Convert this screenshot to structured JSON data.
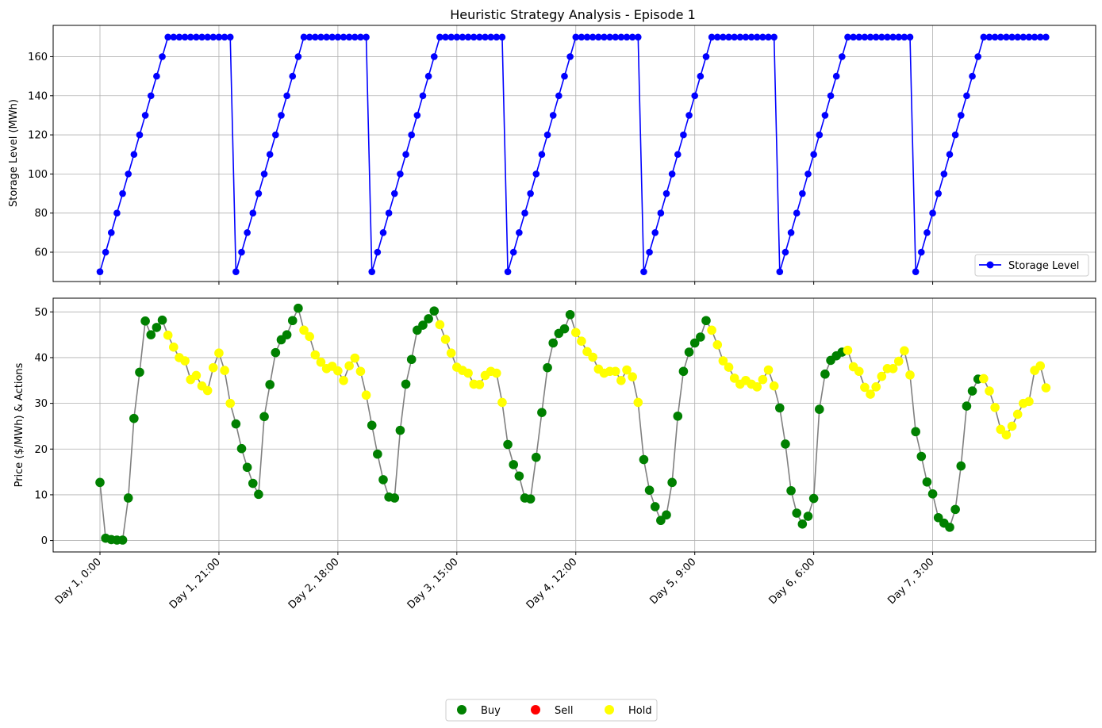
{
  "chart_data": [
    {
      "type": "line",
      "title": "Heuristic Strategy Analysis - Episode 1",
      "xlabel": "",
      "ylabel": "Storage Level (MWh)",
      "ylim": [
        45,
        176
      ],
      "y_ticks": [
        60,
        80,
        100,
        120,
        140,
        160
      ],
      "grid": true,
      "legend_position": "bottom-right",
      "series": [
        {
          "name": "Storage Level",
          "color": "#0000ff",
          "marker": "circle",
          "values": [
            50,
            60,
            70,
            80,
            90,
            100,
            110,
            120,
            130,
            140,
            150,
            160,
            170,
            170,
            170,
            170,
            170,
            170,
            170,
            170,
            170,
            170,
            170,
            170,
            50,
            60,
            70,
            80,
            90,
            100,
            110,
            120,
            130,
            140,
            150,
            160,
            170,
            170,
            170,
            170,
            170,
            170,
            170,
            170,
            170,
            170,
            170,
            170,
            50,
            60,
            70,
            80,
            90,
            100,
            110,
            120,
            130,
            140,
            150,
            160,
            170,
            170,
            170,
            170,
            170,
            170,
            170,
            170,
            170,
            170,
            170,
            170,
            50,
            60,
            70,
            80,
            90,
            100,
            110,
            120,
            130,
            140,
            150,
            160,
            170,
            170,
            170,
            170,
            170,
            170,
            170,
            170,
            170,
            170,
            170,
            170,
            50,
            60,
            70,
            80,
            90,
            100,
            110,
            120,
            130,
            140,
            150,
            160,
            170,
            170,
            170,
            170,
            170,
            170,
            170,
            170,
            170,
            170,
            170,
            170,
            50,
            60,
            70,
            80,
            90,
            100,
            110,
            120,
            130,
            140,
            150,
            160,
            170,
            170,
            170,
            170,
            170,
            170,
            170,
            170,
            170,
            170,
            170,
            170,
            50,
            60,
            70,
            80,
            90,
            100,
            110,
            120,
            130,
            140,
            150,
            160,
            170,
            170,
            170,
            170,
            170,
            170,
            170,
            170,
            170,
            170,
            170,
            170
          ]
        }
      ]
    },
    {
      "type": "scatter",
      "xlabel": "",
      "ylabel": "Price ($/MWh) & Actions",
      "ylim": [
        -2.5,
        53
      ],
      "y_ticks": [
        0,
        10,
        20,
        30,
        40,
        50
      ],
      "grid": true,
      "line_color": "#808080",
      "x_tick_labels": [
        "Day 1, 0:00",
        "Day 1, 21:00",
        "Day 2, 18:00",
        "Day 3, 15:00",
        "Day 4, 12:00",
        "Day 5, 9:00",
        "Day 6, 6:00",
        "Day 7, 3:00"
      ],
      "x_tick_indices": [
        0,
        21,
        42,
        63,
        84,
        105,
        126,
        147
      ],
      "legend_position": "bottom-center",
      "legend": [
        {
          "label": "Buy",
          "color": "#008000"
        },
        {
          "label": "Sell",
          "color": "#ff0000"
        },
        {
          "label": "Hold",
          "color": "#ffff00"
        }
      ],
      "prices": [
        12.7,
        0.5,
        0.2,
        0.1,
        0.1,
        9.3,
        26.7,
        36.8,
        48.0,
        45.0,
        46.6,
        48.2,
        44.9,
        42.3,
        40.0,
        39.3,
        35.2,
        36.1,
        33.8,
        32.8,
        37.8,
        41.0,
        37.2,
        30.0,
        25.5,
        20.1,
        16.0,
        12.5,
        10.1,
        27.1,
        34.1,
        41.1,
        43.9,
        45.0,
        48.1,
        50.8,
        46.0,
        44.6,
        40.6,
        39.0,
        37.6,
        38.1,
        37.1,
        35.0,
        38.2,
        39.9,
        37.0,
        31.8,
        25.2,
        18.9,
        13.3,
        9.5,
        9.3,
        24.1,
        34.2,
        39.6,
        46.0,
        47.1,
        48.5,
        50.2,
        47.2,
        44.0,
        41.0,
        37.9,
        37.2,
        36.6,
        34.2,
        34.1,
        36.1,
        37.0,
        36.6,
        30.2,
        21.0,
        16.6,
        14.1,
        9.3,
        9.1,
        18.2,
        28.0,
        37.8,
        43.2,
        45.3,
        46.3,
        49.4,
        45.5,
        43.6,
        41.3,
        40.1,
        37.5,
        36.6,
        37.0,
        37.0,
        35.0,
        37.3,
        35.8,
        30.2,
        17.7,
        11.0,
        7.4,
        4.4,
        5.6,
        12.7,
        27.2,
        37.0,
        41.2,
        43.2,
        44.5,
        48.1,
        46.0,
        42.8,
        39.3,
        37.9,
        35.5,
        34.2,
        35.0,
        34.2,
        33.6,
        35.2,
        37.3,
        33.8,
        29.0,
        21.1,
        10.9,
        6.0,
        3.6,
        5.3,
        9.2,
        28.7,
        36.4,
        39.4,
        40.4,
        41.2,
        41.6,
        38.0,
        37.0,
        33.5,
        32.0,
        33.6,
        35.9,
        37.6,
        37.6,
        39.2,
        41.5,
        36.2,
        23.8,
        18.4,
        12.8,
        10.2,
        5.0,
        3.8,
        2.9,
        6.8,
        16.3,
        29.4,
        32.7,
        35.3,
        35.4,
        32.7,
        29.1,
        24.3,
        23.1,
        25.0,
        27.6,
        30.0,
        30.4,
        37.2,
        38.2,
        33.4
      ],
      "actions": [
        "Buy",
        "Buy",
        "Buy",
        "Buy",
        "Buy",
        "Buy",
        "Buy",
        "Buy",
        "Buy",
        "Buy",
        "Buy",
        "Buy",
        "Hold",
        "Hold",
        "Hold",
        "Hold",
        "Hold",
        "Hold",
        "Hold",
        "Hold",
        "Hold",
        "Hold",
        "Hold",
        "Hold",
        "Buy",
        "Buy",
        "Buy",
        "Buy",
        "Buy",
        "Buy",
        "Buy",
        "Buy",
        "Buy",
        "Buy",
        "Buy",
        "Buy",
        "Hold",
        "Hold",
        "Hold",
        "Hold",
        "Hold",
        "Hold",
        "Hold",
        "Hold",
        "Hold",
        "Hold",
        "Hold",
        "Hold",
        "Buy",
        "Buy",
        "Buy",
        "Buy",
        "Buy",
        "Buy",
        "Buy",
        "Buy",
        "Buy",
        "Buy",
        "Buy",
        "Buy",
        "Hold",
        "Hold",
        "Hold",
        "Hold",
        "Hold",
        "Hold",
        "Hold",
        "Hold",
        "Hold",
        "Hold",
        "Hold",
        "Hold",
        "Buy",
        "Buy",
        "Buy",
        "Buy",
        "Buy",
        "Buy",
        "Buy",
        "Buy",
        "Buy",
        "Buy",
        "Buy",
        "Buy",
        "Hold",
        "Hold",
        "Hold",
        "Hold",
        "Hold",
        "Hold",
        "Hold",
        "Hold",
        "Hold",
        "Hold",
        "Hold",
        "Hold",
        "Buy",
        "Buy",
        "Buy",
        "Buy",
        "Buy",
        "Buy",
        "Buy",
        "Buy",
        "Buy",
        "Buy",
        "Buy",
        "Buy",
        "Hold",
        "Hold",
        "Hold",
        "Hold",
        "Hold",
        "Hold",
        "Hold",
        "Hold",
        "Hold",
        "Hold",
        "Hold",
        "Hold",
        "Buy",
        "Buy",
        "Buy",
        "Buy",
        "Buy",
        "Buy",
        "Buy",
        "Buy",
        "Buy",
        "Buy",
        "Buy",
        "Buy",
        "Hold",
        "Hold",
        "Hold",
        "Hold",
        "Hold",
        "Hold",
        "Hold",
        "Hold",
        "Hold",
        "Hold",
        "Hold",
        "Hold",
        "Buy",
        "Buy",
        "Buy",
        "Buy",
        "Buy",
        "Buy",
        "Buy",
        "Buy",
        "Buy",
        "Buy",
        "Buy",
        "Buy",
        "Hold",
        "Hold",
        "Hold",
        "Hold",
        "Hold",
        "Hold",
        "Hold",
        "Hold",
        "Hold",
        "Hold",
        "Hold",
        "Hold"
      ]
    }
  ]
}
